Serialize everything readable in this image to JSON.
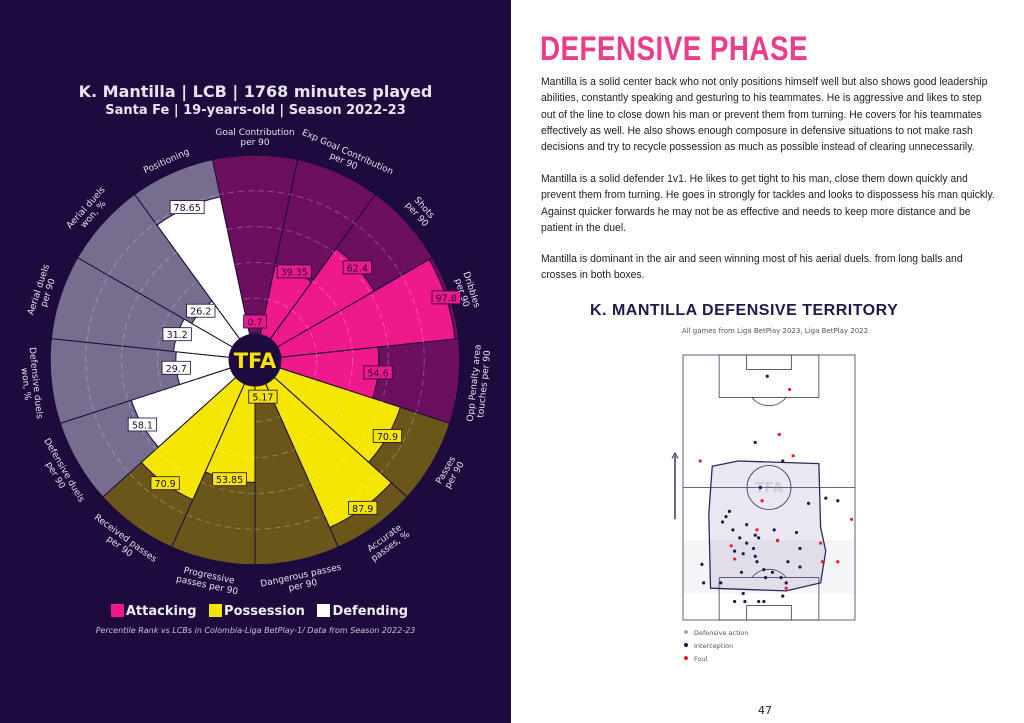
{
  "left": {
    "title": "K. Mantilla | LCB | 1768 minutes played",
    "subtitle": "Santa Fe | 19-years-old | Season 2022-23",
    "logo_text": "TFA",
    "legend": [
      {
        "label": "Attacking",
        "color": "#f0198c"
      },
      {
        "label": "Possession",
        "color": "#f5e600"
      },
      {
        "label": "Defending",
        "color": "#ffffff"
      }
    ],
    "footnote": "Percentile Rank vs LCBs in Colombia-Liga BetPlay-1/ Data from Season 2022-23"
  },
  "chart_data": {
    "type": "pizza",
    "range": [
      0,
      100
    ],
    "grid": "dashed rings",
    "categories": [
      {
        "label": [
          "Goal Contribution",
          "per 90"
        ],
        "value": 0.7,
        "group": "Attacking"
      },
      {
        "label": [
          "Exp Goal Contribution",
          "per 90"
        ],
        "value": 39.35,
        "group": "Attacking"
      },
      {
        "label": [
          "Shots",
          "per 90"
        ],
        "value": 62.4,
        "group": "Attacking"
      },
      {
        "label": [
          "Dribbles",
          "per 90"
        ],
        "value": 97.8,
        "group": "Attacking"
      },
      {
        "label": [
          "Opp Penalty area",
          "touches per 90"
        ],
        "value": 54.6,
        "group": "Attacking"
      },
      {
        "label": [
          "Passes",
          "per 90"
        ],
        "value": 70.9,
        "group": "Possession"
      },
      {
        "label": [
          "Accurate",
          "passes, %"
        ],
        "value": 87.9,
        "group": "Possession"
      },
      {
        "label": [
          "Dangerous passes",
          "per 90"
        ],
        "value": 5.17,
        "group": "Possession"
      },
      {
        "label": [
          "Progressive",
          "passes per 90"
        ],
        "value": 53.85,
        "group": "Possession"
      },
      {
        "label": [
          "Received passes",
          "per 90"
        ],
        "value": 70.9,
        "group": "Possession"
      },
      {
        "label": [
          "Defensive duels",
          "per 90"
        ],
        "value": 58.1,
        "group": "Defending"
      },
      {
        "label": [
          "Defensive duels",
          "won, %"
        ],
        "value": 29.7,
        "group": "Defending"
      },
      {
        "label": [
          "Aerial duels",
          "per 90"
        ],
        "value": 31.2,
        "group": "Defending"
      },
      {
        "label": [
          "Aerial duels",
          "won, %"
        ],
        "value": 26.2,
        "group": "Defending"
      },
      {
        "label": [
          "Positioning"
        ],
        "value": 78.65,
        "group": "Defending"
      }
    ],
    "group_colors": {
      "Attacking": {
        "fill": "#f0198c",
        "bg": "#6c0f5f"
      },
      "Possession": {
        "fill": "#f5e600",
        "bg": "#6b561a"
      },
      "Defending": {
        "fill": "#ffffff",
        "bg": "#776d8f"
      }
    }
  },
  "right": {
    "heading": "DEFENSIVE PHASE",
    "paragraphs": [
      "Mantilla is a solid center back who not only positions himself well but also shows good leadership abilities, constantly speaking and gesturing to his teammates. He is aggressive and likes to step out of the line to close down his man or prevent them from turning. He covers for his teammates effectively as well. He also shows enough composure in defensive situations to not make rash decisions and try to recycle possession as much as possible instead of clearing unnecessarily.",
      "Mantilla is a solid defender 1v1. He likes to get tight to his man, close them down quickly and prevent them from turning. He goes in strongly for tackles and looks to dispossess his man quickly. Against quicker forwards he may not be as effective and needs to keep more distance and be patient in the duel.",
      "Mantilla is dominant in the air and seen winning most of his aerial duels. from long balls and crosses in both boxes."
    ],
    "territory": {
      "title": "K. MANTILLA DEFENSIVE TERRITORY",
      "subtitle": "All games from Liga BetPlay 2023, Liga BetPlay 2022",
      "watermark": "TFA",
      "legend": [
        {
          "label": "Defensive action",
          "color": "#aaaaaa"
        },
        {
          "label": "Interception",
          "color": "#1e1b4b"
        },
        {
          "label": "Foul",
          "color": "#e8202a"
        }
      ],
      "attack_direction": "up",
      "interceptions": [
        [
          49,
          92
        ],
        [
          58,
          60
        ],
        [
          42,
          67
        ],
        [
          45,
          50
        ],
        [
          27,
          41
        ],
        [
          25,
          39
        ],
        [
          23,
          37
        ],
        [
          29,
          34
        ],
        [
          37,
          36
        ],
        [
          53,
          34
        ],
        [
          42,
          32
        ],
        [
          44,
          31
        ],
        [
          33,
          31
        ],
        [
          55,
          30
        ],
        [
          30,
          26
        ],
        [
          35,
          25
        ],
        [
          42,
          24
        ],
        [
          43,
          22
        ],
        [
          41,
          27
        ],
        [
          37,
          29
        ],
        [
          66,
          33
        ],
        [
          68,
          27
        ],
        [
          73,
          44
        ],
        [
          90,
          45
        ],
        [
          83,
          46
        ],
        [
          61,
          22
        ],
        [
          47,
          19
        ],
        [
          52,
          18
        ],
        [
          48,
          16
        ],
        [
          57,
          16
        ],
        [
          60,
          14
        ],
        [
          22,
          14
        ],
        [
          35,
          10
        ],
        [
          30,
          7
        ],
        [
          36,
          7
        ],
        [
          44,
          7
        ],
        [
          47,
          7
        ],
        [
          58,
          9
        ],
        [
          68,
          20
        ],
        [
          11,
          21
        ],
        [
          12,
          14
        ],
        [
          34,
          18
        ]
      ],
      "fouls": [
        [
          62,
          87
        ],
        [
          56,
          70
        ],
        [
          64,
          62
        ],
        [
          10,
          60
        ],
        [
          46,
          45
        ],
        [
          43,
          34
        ],
        [
          55,
          30
        ],
        [
          28,
          28
        ],
        [
          30,
          23
        ],
        [
          80,
          29
        ],
        [
          81,
          22
        ],
        [
          90,
          22
        ],
        [
          60,
          12
        ],
        [
          98,
          38
        ]
      ]
    }
  },
  "page_number": "47"
}
